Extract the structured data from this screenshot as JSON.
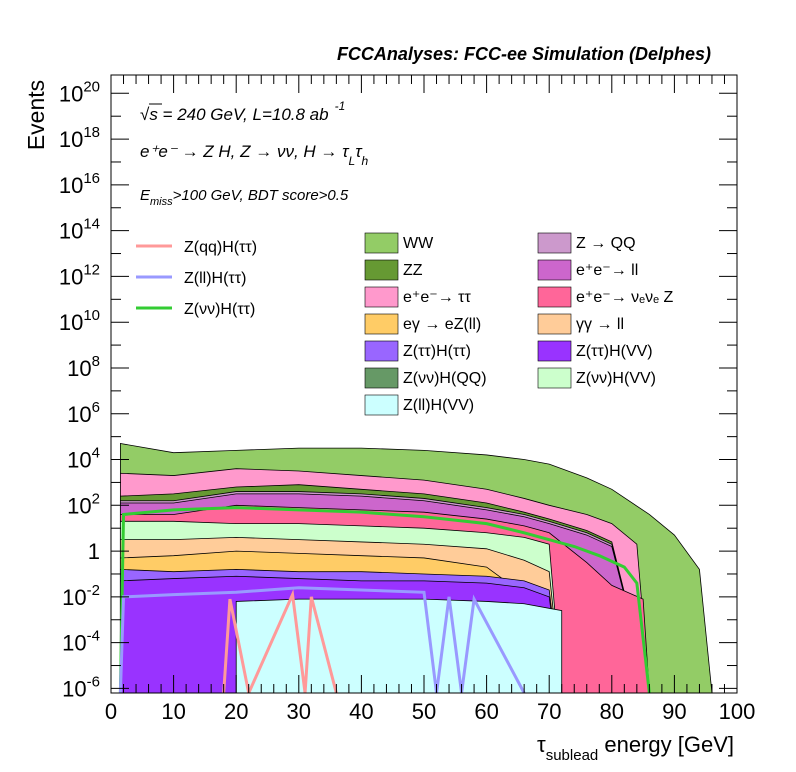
{
  "chart_data": {
    "type": "area",
    "title": "FCCAnalyses: FCC-ee Simulation (Delphes)",
    "xlabel": {
      "main": "τ",
      "sub": "sublead",
      "rest": " energy [GeV]"
    },
    "ylabel": "Events",
    "xlim": [
      0,
      100
    ],
    "ylim_log10": [
      -6.2,
      20.8
    ],
    "log_y": true,
    "grid": false,
    "x_ticks": [
      "0",
      "10",
      "20",
      "30",
      "40",
      "50",
      "60",
      "70",
      "80",
      "90",
      "100"
    ],
    "y_ticks": [
      {
        "exp": -6,
        "label": "10",
        "sup": "-6"
      },
      {
        "exp": -4,
        "label": "10",
        "sup": "-4"
      },
      {
        "exp": -2,
        "label": "10",
        "sup": "-2"
      },
      {
        "exp": 0,
        "label": "1",
        "sup": ""
      },
      {
        "exp": 2,
        "label": "10",
        "sup": "2"
      },
      {
        "exp": 4,
        "label": "10",
        "sup": "4"
      },
      {
        "exp": 6,
        "label": "10",
        "sup": "6"
      },
      {
        "exp": 8,
        "label": "10",
        "sup": "8"
      },
      {
        "exp": 10,
        "label": "10",
        "sup": "10"
      },
      {
        "exp": 12,
        "label": "10",
        "sup": "12"
      },
      {
        "exp": 14,
        "label": "10",
        "sup": "14"
      },
      {
        "exp": 16,
        "label": "10",
        "sup": "16"
      },
      {
        "exp": 18,
        "label": "10",
        "sup": "18"
      },
      {
        "exp": 20,
        "label": "10",
        "sup": "20"
      }
    ],
    "annotations": {
      "energy": "√s = 240 GeV, L=10.8 ab",
      "energy_sup": "-1",
      "process": "e⁺e⁻ → Z H, Z → νν, H → τ",
      "process_sub1": "L",
      "process_tau2": "τ",
      "process_sub2": "h",
      "selection_e": "E",
      "selection_sub": "miss",
      "selection_rest": ">100 GeV, BDT score>0.5"
    },
    "legend_position": "top-right",
    "signal_legend": [
      {
        "name": "Z(qq)H(ττ)",
        "color": "#ff9999"
      },
      {
        "name": "Z(ll)H(ττ)",
        "color": "#9999ff"
      },
      {
        "name": "Z(νν)H(ττ)",
        "color": "#33cc33"
      }
    ],
    "background_legend": [
      {
        "name": "WW",
        "color": "#93cc66"
      },
      {
        "name": "ZZ",
        "color": "#669933"
      },
      {
        "name": "e⁺e⁻→ ττ",
        "color": "#ff99cc"
      },
      {
        "name": "eγ → eZ(ll)",
        "color": "#ffcc66"
      },
      {
        "name": "Z(ττ)H(ττ)",
        "color": "#9966ff"
      },
      {
        "name": "Z(νν)H(QQ)",
        "color": "#669966"
      },
      {
        "name": "Z(ll)H(VV)",
        "color": "#ccffff"
      },
      {
        "name": "Z → QQ",
        "color": "#cc99cc"
      },
      {
        "name": "e⁺e⁻→ ll",
        "color": "#cc66cc"
      },
      {
        "name": "e⁺e⁻→ νₑνₑ Z",
        "color": "#ff6699"
      },
      {
        "name": "γγ → ll",
        "color": "#ffcc99"
      },
      {
        "name": "Z(ττ)H(VV)",
        "color": "#9933ff"
      },
      {
        "name": "Z(νν)H(VV)",
        "color": "#ccffcc"
      }
    ],
    "stack_bin_edges": [
      1.5,
      20,
      70,
      100
    ],
    "stack_layers": [
      {
        "name": "Z(ll)H(VV)",
        "color": "#ccffff",
        "top_log10": [
          [
            1.5,
            -6.2
          ],
          [
            20,
            -6.2
          ],
          [
            20,
            -2.2
          ],
          [
            30,
            -2.1
          ],
          [
            40,
            -2.1
          ],
          [
            50,
            -2.1
          ],
          [
            60,
            -2.2
          ],
          [
            66,
            -2.3
          ],
          [
            70,
            -2.5
          ],
          [
            72,
            -2.6
          ],
          [
            72,
            -6.2
          ],
          [
            100,
            -6.2
          ]
        ]
      },
      {
        "name": "Z(ττ)H(VV)",
        "color": "#9933ff",
        "top_log10": [
          [
            1.5,
            -1.3
          ],
          [
            10,
            -1.2
          ],
          [
            20,
            -1.1
          ],
          [
            30,
            -1.2
          ],
          [
            40,
            -1.3
          ],
          [
            50,
            -1.3
          ],
          [
            60,
            -1.4
          ],
          [
            66,
            -1.6
          ],
          [
            70,
            -2.0
          ],
          [
            72,
            -6.2
          ],
          [
            100,
            -6.2
          ]
        ]
      },
      {
        "name": "Z(ττ)H(ττ)",
        "color": "#9966ff",
        "top_log10": [
          [
            1.5,
            -0.8
          ],
          [
            10,
            -0.9
          ],
          [
            20,
            -0.8
          ],
          [
            30,
            -0.9
          ],
          [
            40,
            -0.9
          ],
          [
            50,
            -1.0
          ],
          [
            60,
            -1.1
          ],
          [
            66,
            -1.3
          ],
          [
            70,
            -1.7
          ],
          [
            72,
            -6.2
          ],
          [
            100,
            -6.2
          ]
        ]
      },
      {
        "name": "eγ → eZ(ll)",
        "color": "#ffcc66",
        "top_log10": [
          [
            1.5,
            -0.3
          ],
          [
            10,
            -0.2
          ],
          [
            20,
            0.0
          ],
          [
            30,
            -0.1
          ],
          [
            40,
            -0.2
          ],
          [
            50,
            -0.3
          ],
          [
            60,
            -0.7
          ],
          [
            64,
            -1.5
          ],
          [
            68,
            -1.8
          ],
          [
            72,
            -6.2
          ],
          [
            100,
            -6.2
          ]
        ]
      },
      {
        "name": "γγ → ll",
        "color": "#ffcc99",
        "top_log10": [
          [
            1.5,
            0.5
          ],
          [
            10,
            0.5
          ],
          [
            20,
            0.6
          ],
          [
            30,
            0.5
          ],
          [
            40,
            0.4
          ],
          [
            50,
            0.3
          ],
          [
            60,
            0.1
          ],
          [
            66,
            -0.4
          ],
          [
            70,
            -0.9
          ],
          [
            72,
            -6.2
          ],
          [
            100,
            -6.2
          ]
        ]
      },
      {
        "name": "Z(νν)H(VV)",
        "color": "#ccffcc",
        "top_log10": [
          [
            1.5,
            1.3
          ],
          [
            10,
            1.3
          ],
          [
            20,
            1.2
          ],
          [
            30,
            1.2
          ],
          [
            40,
            1.1
          ],
          [
            50,
            1.0
          ],
          [
            60,
            0.8
          ],
          [
            66,
            0.6
          ],
          [
            70,
            0.3
          ],
          [
            72,
            -6.2
          ],
          [
            100,
            -6.2
          ]
        ]
      },
      {
        "name": "e⁺e⁻→ νₑνₑ Z",
        "color": "#ff6699",
        "top_log10": [
          [
            1.5,
            1.6
          ],
          [
            10,
            1.6
          ],
          [
            20,
            2.0
          ],
          [
            30,
            1.9
          ],
          [
            40,
            1.8
          ],
          [
            50,
            1.7
          ],
          [
            60,
            1.4
          ],
          [
            66,
            1.1
          ],
          [
            70,
            0.8
          ],
          [
            76,
            -0.5
          ],
          [
            80,
            -1.5
          ],
          [
            85,
            -2.1
          ],
          [
            86,
            -6.2
          ],
          [
            100,
            -6.2
          ]
        ]
      },
      {
        "name": "e⁺e⁻→ ll",
        "color": "#cc66cc",
        "top_log10": [
          [
            1.5,
            2.1
          ],
          [
            10,
            2.1
          ],
          [
            20,
            2.5
          ],
          [
            30,
            2.5
          ],
          [
            40,
            2.4
          ],
          [
            50,
            2.2
          ],
          [
            60,
            1.8
          ],
          [
            66,
            1.5
          ],
          [
            70,
            1.2
          ],
          [
            76,
            0.7
          ],
          [
            80,
            0.2
          ],
          [
            86,
            -6.2
          ],
          [
            100,
            -6.2
          ]
        ]
      },
      {
        "name": "Z → QQ",
        "color": "#cc99cc",
        "top_log10": [
          [
            1.5,
            2.2
          ],
          [
            10,
            2.2
          ],
          [
            20,
            2.6
          ],
          [
            30,
            2.6
          ],
          [
            40,
            2.5
          ],
          [
            50,
            2.3
          ],
          [
            60,
            1.9
          ],
          [
            66,
            1.6
          ],
          [
            70,
            1.3
          ],
          [
            76,
            0.8
          ],
          [
            80,
            0.3
          ],
          [
            86,
            -6.2
          ],
          [
            100,
            -6.2
          ]
        ]
      },
      {
        "name": "ZZ",
        "color": "#669933",
        "top_log10": [
          [
            1.5,
            2.4
          ],
          [
            10,
            2.5
          ],
          [
            20,
            2.8
          ],
          [
            30,
            2.9
          ],
          [
            40,
            2.7
          ],
          [
            50,
            2.5
          ],
          [
            60,
            2.1
          ],
          [
            66,
            1.7
          ],
          [
            70,
            1.4
          ],
          [
            76,
            0.9
          ],
          [
            80,
            0.4
          ],
          [
            86,
            -6.2
          ],
          [
            100,
            -6.2
          ]
        ]
      },
      {
        "name": "e⁺e⁻→ ττ",
        "color": "#ff99cc",
        "top_log10": [
          [
            1.5,
            3.4
          ],
          [
            10,
            3.3
          ],
          [
            20,
            3.6
          ],
          [
            30,
            3.5
          ],
          [
            40,
            3.3
          ],
          [
            50,
            3.1
          ],
          [
            60,
            2.7
          ],
          [
            66,
            2.3
          ],
          [
            70,
            2.0
          ],
          [
            76,
            1.6
          ],
          [
            80,
            1.2
          ],
          [
            84,
            0.3
          ],
          [
            86,
            -6.2
          ],
          [
            100,
            -6.2
          ]
        ]
      },
      {
        "name": "WW",
        "color": "#93cc66",
        "top_log10": [
          [
            1.5,
            4.7
          ],
          [
            10,
            4.3
          ],
          [
            20,
            4.4
          ],
          [
            30,
            4.5
          ],
          [
            40,
            4.5
          ],
          [
            50,
            4.4
          ],
          [
            60,
            4.2
          ],
          [
            66,
            4.0
          ],
          [
            70,
            3.8
          ],
          [
            76,
            3.2
          ],
          [
            80,
            2.7
          ],
          [
            86,
            1.6
          ],
          [
            90,
            0.7
          ],
          [
            94,
            -0.8
          ],
          [
            96,
            -6.2
          ],
          [
            100,
            -6.2
          ]
        ]
      }
    ],
    "signal_lines": [
      {
        "name": "Z(νν)H(ττ)",
        "color": "#33cc33",
        "log10": [
          [
            1.5,
            -6.2
          ],
          [
            2,
            1.6
          ],
          [
            10,
            1.8
          ],
          [
            20,
            1.9
          ],
          [
            30,
            1.8
          ],
          [
            40,
            1.7
          ],
          [
            50,
            1.5
          ],
          [
            60,
            1.2
          ],
          [
            66,
            0.8
          ],
          [
            70,
            0.5
          ],
          [
            74,
            0.2
          ],
          [
            78,
            -0.2
          ],
          [
            82,
            -0.7
          ],
          [
            84,
            -1.4
          ],
          [
            86,
            -6.2
          ]
        ]
      },
      {
        "name": "Z(ll)H(ττ)",
        "color": "#9999ff",
        "log10": [
          [
            1.5,
            -6.2
          ],
          [
            2,
            -2.0
          ],
          [
            10,
            -1.9
          ],
          [
            20,
            -1.8
          ],
          [
            30,
            -1.6
          ],
          [
            40,
            -1.7
          ],
          [
            50,
            -1.8
          ],
          [
            52,
            -6.2
          ],
          [
            54,
            -2.0
          ],
          [
            56,
            -6.2
          ],
          [
            58,
            -2.1
          ],
          [
            66,
            -6.2
          ]
        ]
      },
      {
        "name": "Z(qq)H(ττ)",
        "color": "#ff9999",
        "log10": [
          [
            18,
            -6.2
          ],
          [
            19,
            -2.1
          ],
          [
            22,
            -6.2
          ],
          [
            29,
            -1.9
          ],
          [
            31,
            -6.2
          ],
          [
            32,
            -2.0
          ],
          [
            36,
            -6.2
          ]
        ]
      }
    ]
  }
}
